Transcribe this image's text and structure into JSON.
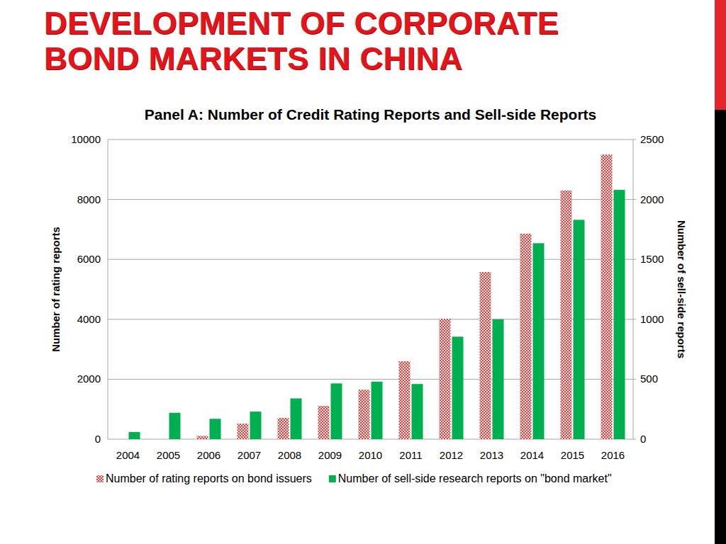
{
  "slide_title": "DEVELOPMENT OF CORPORATE BOND MARKETS IN CHINA",
  "chart_data": {
    "type": "bar",
    "title": "Panel A: Number of Credit Rating Reports and Sell-side Reports",
    "y_label": "Number of rating reports",
    "y2_label": "Number of sell-side reports",
    "categories": [
      "2004",
      "2005",
      "2006",
      "2007",
      "2008",
      "2009",
      "2010",
      "2011",
      "2012",
      "2013",
      "2014",
      "2015",
      "2016"
    ],
    "series": [
      {
        "name": "Number of rating reports on bond issuers",
        "color": "#c0504d",
        "axis": "y",
        "values": [
          0,
          0,
          110,
          520,
          710,
          1110,
          1650,
          2600,
          4020,
          5580,
          6860,
          8300,
          9500
        ]
      },
      {
        "name": "Number of sell-side research reports on \"bond market\"",
        "color": "#00b050",
        "axis": "y2",
        "values": [
          60,
          220,
          170,
          230,
          340,
          465,
          480,
          460,
          855,
          1000,
          1635,
          1830,
          2080
        ]
      }
    ],
    "ylim": [
      0,
      10000
    ],
    "yticks": [
      0,
      2000,
      4000,
      6000,
      8000,
      10000
    ],
    "y2lim": [
      0,
      2500
    ],
    "y2ticks": [
      0,
      500,
      1000,
      1500,
      2000,
      2500
    ],
    "grid": true,
    "legend": "bottom"
  }
}
